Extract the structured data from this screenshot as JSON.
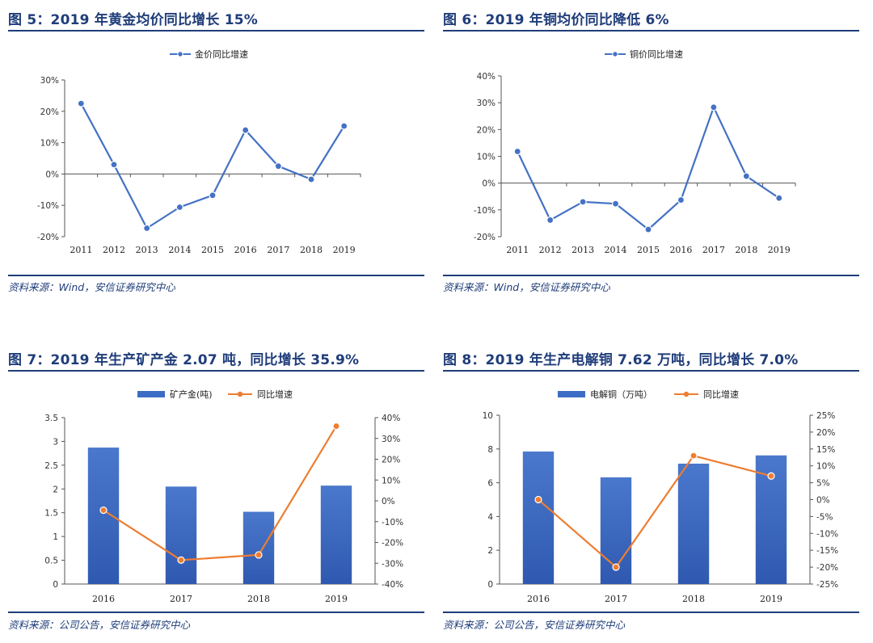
{
  "colors": {
    "title": "#1f3d7a",
    "line_blue": "#4472c4",
    "line_orange": "#ed7d31",
    "bar_blue": "#3d6cc4",
    "axis": "#555555"
  },
  "panels": [
    {
      "title": "图 5：2019 年黄金均价同比增长 15%",
      "source": "资料来源：Wind，安信证券研究中心"
    },
    {
      "title": "图 6：2019 年铜均价同比降低 6%",
      "source": "资料来源：Wind，安信证券研究中心"
    },
    {
      "title": "图 7：2019 年生产矿产金 2.07 吨，同比增长 35.9%",
      "source": "资料来源：公司公告，安信证券研究中心"
    },
    {
      "title": "图 8：2019 年生产电解铜 7.62 万吨，同比增长 7.0%",
      "source": "资料来源：公司公告，安信证券研究中心"
    }
  ],
  "chart_data": [
    {
      "type": "line",
      "title": "图 5：2019 年黄金均价同比增长 15%",
      "categories": [
        "2011",
        "2012",
        "2013",
        "2014",
        "2015",
        "2016",
        "2017",
        "2018",
        "2019"
      ],
      "series": [
        {
          "name": "金价同比增速",
          "values": [
            22.5,
            3,
            -17.3,
            -10.6,
            -6.8,
            14,
            2.5,
            -1.7,
            15.3
          ]
        }
      ],
      "ylim": [
        -20,
        30
      ],
      "yticks": [
        -20,
        -10,
        0,
        10,
        20,
        30
      ],
      "ytick_labels": [
        "-20%",
        "-10%",
        "0%",
        "10%",
        "20%",
        "30%"
      ],
      "legend": "top-center"
    },
    {
      "type": "line",
      "title": "图 6：2019 年铜均价同比降低 6%",
      "categories": [
        "2011",
        "2012",
        "2013",
        "2014",
        "2015",
        "2016",
        "2017",
        "2018",
        "2019"
      ],
      "series": [
        {
          "name": "铜价同比增速",
          "values": [
            11.8,
            -13.8,
            -7,
            -7.7,
            -17.3,
            -6.3,
            28.3,
            2.6,
            -5.6
          ]
        }
      ],
      "ylim": [
        -20,
        40
      ],
      "yticks": [
        -20,
        -10,
        0,
        10,
        20,
        30,
        40
      ],
      "ytick_labels": [
        "-20%",
        "-10%",
        "0%",
        "10%",
        "20%",
        "30%",
        "40%"
      ],
      "legend": "top-center"
    },
    {
      "type": "bar+line",
      "title": "图 7：2019 年生产矿产金 2.07 吨，同比增长 35.9%",
      "categories": [
        "2016",
        "2017",
        "2018",
        "2019"
      ],
      "bar": {
        "name": "矿产金(吨)",
        "values": [
          2.87,
          2.05,
          1.52,
          2.07
        ]
      },
      "line": {
        "name": "同比增速",
        "values": [
          -4.5,
          -28.5,
          -26,
          35.9
        ]
      },
      "ylim_left": [
        0,
        3.5
      ],
      "yticks_left": [
        0,
        0.5,
        1,
        1.5,
        2,
        2.5,
        3,
        3.5
      ],
      "ytick_labels_left": [
        "0",
        "0.5",
        "1",
        "1.5",
        "2",
        "2.5",
        "3",
        "3.5"
      ],
      "ylim_right": [
        -40,
        40
      ],
      "yticks_right": [
        -40,
        -30,
        -20,
        -10,
        0,
        10,
        20,
        30,
        40
      ],
      "ytick_labels_right": [
        "-40%",
        "-30%",
        "-20%",
        "-10%",
        "0%",
        "10%",
        "20%",
        "30%",
        "40%"
      ],
      "legend": "top-center"
    },
    {
      "type": "bar+line",
      "title": "图 8：2019 年生产电解铜 7.62 万吨，同比增长 7.0%",
      "categories": [
        "2016",
        "2017",
        "2018",
        "2019"
      ],
      "bar": {
        "name": "电解铜（万吨）",
        "values": [
          7.85,
          6.32,
          7.13,
          7.62
        ]
      },
      "line": {
        "name": "同比增速",
        "values": [
          0,
          -20,
          13,
          7
        ]
      },
      "ylim_left": [
        0,
        10
      ],
      "yticks_left": [
        0,
        2,
        4,
        6,
        8,
        10
      ],
      "ytick_labels_left": [
        "0",
        "2",
        "4",
        "6",
        "8",
        "10"
      ],
      "ylim_right": [
        -25,
        25
      ],
      "yticks_right": [
        -25,
        -20,
        -15,
        -10,
        -5,
        0,
        5,
        10,
        15,
        20,
        25
      ],
      "ytick_labels_right": [
        "-25%",
        "-20%",
        "-15%",
        "-10%",
        "-5%",
        "0%",
        "5%",
        "10%",
        "15%",
        "20%",
        "25%"
      ],
      "legend": "top-center"
    }
  ]
}
